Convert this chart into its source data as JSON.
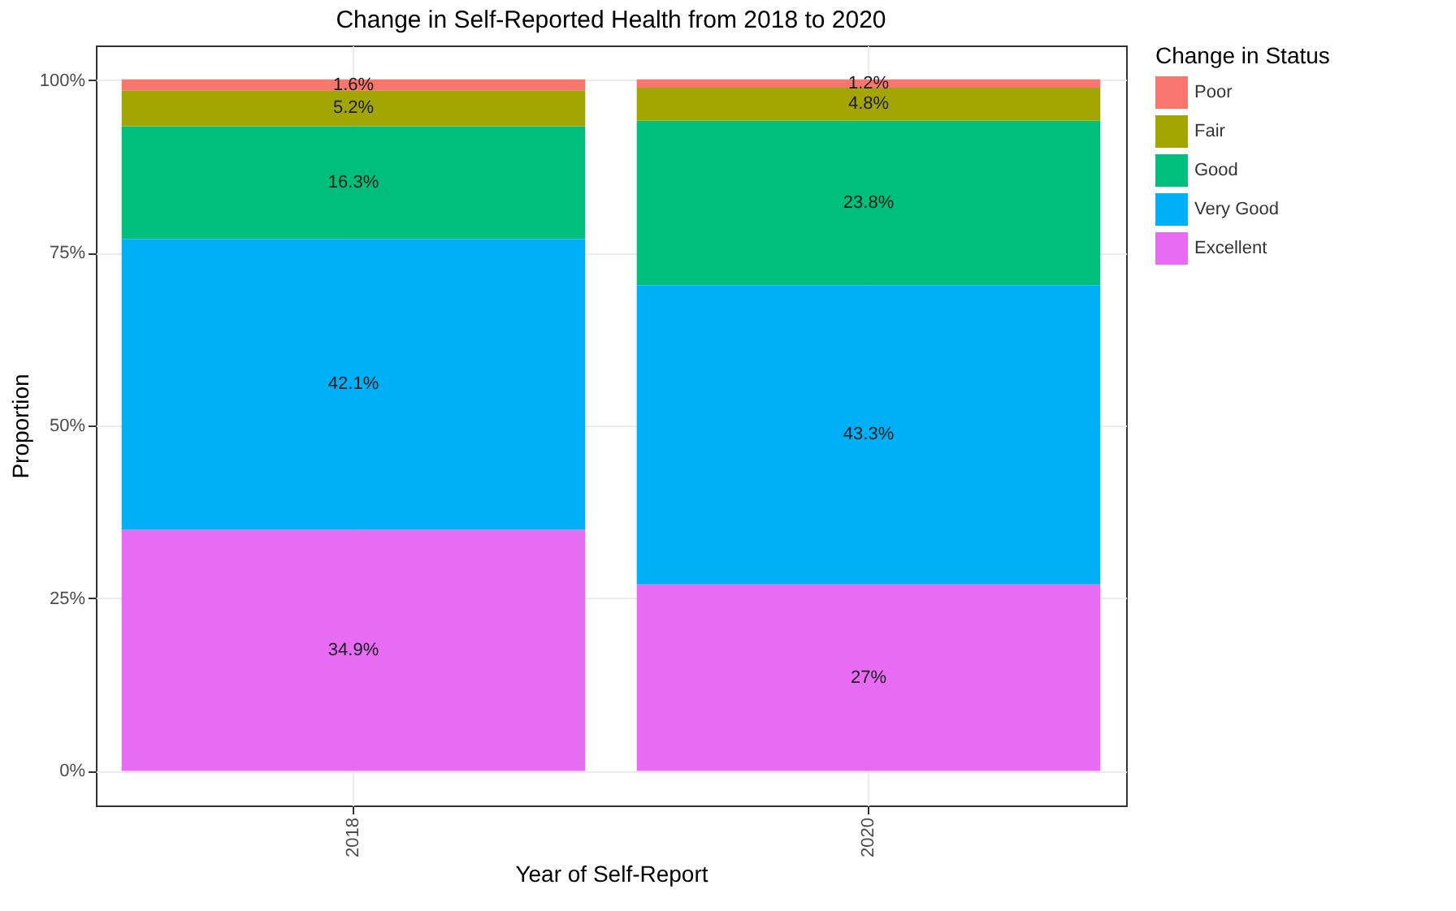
{
  "chart_data": {
    "type": "bar",
    "title": "Change in Self-Reported Health from 2018 to 2020",
    "xlabel": "Year of Self-Report",
    "ylabel": "Proportion",
    "legend_title": "Change in Status",
    "categories": [
      "2018",
      "2020"
    ],
    "series": [
      {
        "name": "Excellent",
        "color": "#e76bf3",
        "values": [
          34.9,
          27
        ],
        "value_labels": [
          "34.9%",
          "27%"
        ]
      },
      {
        "name": "Very Good",
        "color": "#00b0f6",
        "values": [
          42.1,
          43.3
        ],
        "value_labels": [
          "42.1%",
          "43.3%"
        ]
      },
      {
        "name": "Good",
        "color": "#00bf7d",
        "values": [
          16.3,
          23.8
        ],
        "value_labels": [
          "16.3%",
          "23.8%"
        ]
      },
      {
        "name": "Fair",
        "color": "#a3a500",
        "values": [
          5.2,
          4.8
        ],
        "value_labels": [
          "5.2%",
          "4.8%"
        ]
      },
      {
        "name": "Poor",
        "color": "#f8766d",
        "values": [
          1.6,
          1.2
        ],
        "value_labels": [
          "1.6%",
          "1.2%"
        ]
      }
    ],
    "stacked": true,
    "ylim": [
      -5,
      105
    ],
    "yticks": [
      {
        "value": 0,
        "label": "0%"
      },
      {
        "value": 25,
        "label": "25%"
      },
      {
        "value": 50,
        "label": "50%"
      },
      {
        "value": 75,
        "label": "75%"
      },
      {
        "value": 100,
        "label": "100%"
      }
    ],
    "grid": true,
    "legend": "right"
  }
}
